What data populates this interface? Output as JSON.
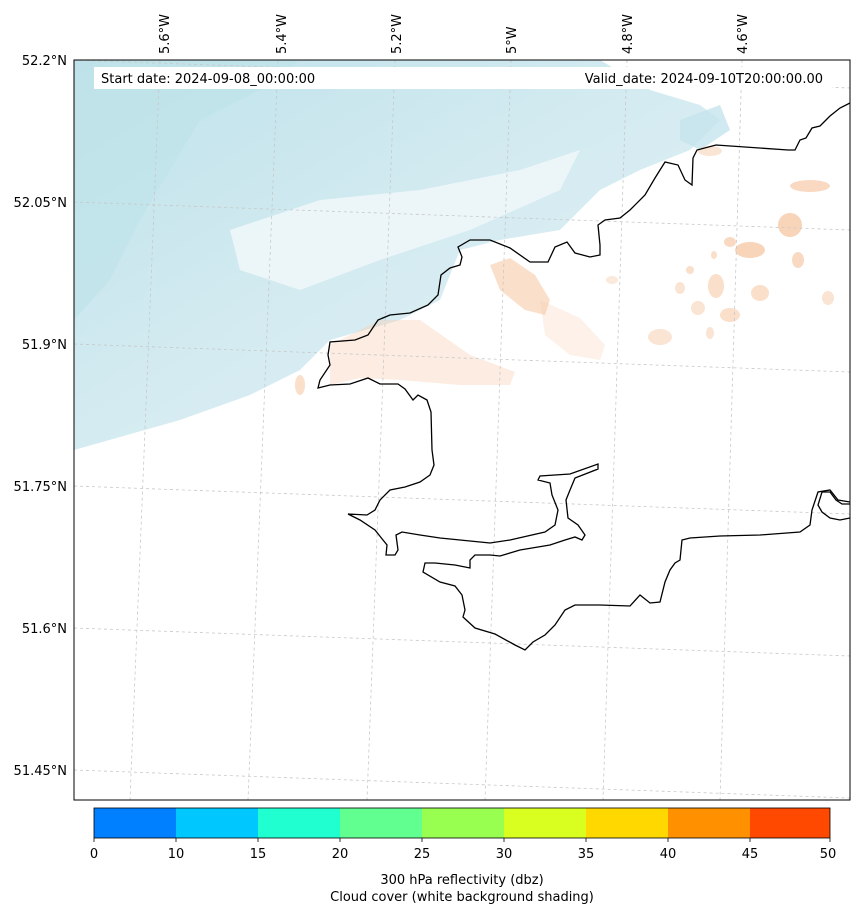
{
  "map": {
    "start_date": "Start date: 2024-09-08_00:00:00",
    "valid_date": "Valid_date: 2024-09-10T20:00:00.00",
    "lon_labels": [
      "5.6°W",
      "5.4°W",
      "5.2°W",
      "5°W",
      "4.8°W",
      "4.6°W"
    ],
    "lat_labels": [
      "52.2°N",
      "52.05°N",
      "51.9°N",
      "51.75°N",
      "51.6°N",
      "51.45°N"
    ],
    "coast_color": "#000000",
    "cloud_color": "#a8d8e4",
    "reflectivity_color": "#f6c9a8"
  },
  "colorbar": {
    "ticks": [
      "0",
      "10",
      "15",
      "20",
      "25",
      "30",
      "35",
      "40",
      "45",
      "50"
    ],
    "colors": [
      "#0080ff",
      "#00c8ff",
      "#20ffd0",
      "#60ff90",
      "#98ff50",
      "#d8ff20",
      "#ffd800",
      "#ff9000",
      "#ff4800"
    ],
    "label_line1": "300 hPa reflectivity (dbz)",
    "label_line2": "Cloud cover (white background shading)"
  }
}
